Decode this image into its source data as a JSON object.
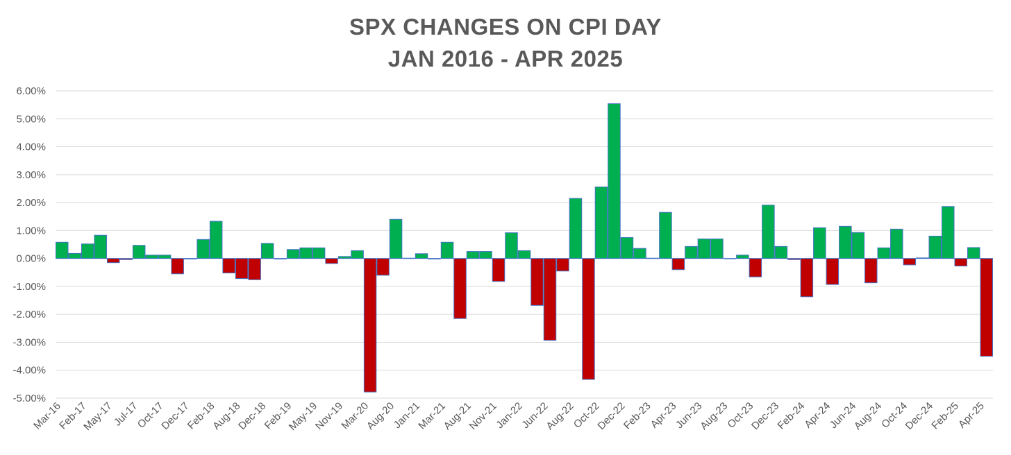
{
  "chart_data": {
    "type": "bar",
    "title_line1": "SPX CHANGES ON CPI DAY",
    "title_line2": "JAN 2016 - APR 2025",
    "ylim": [
      -5,
      6
    ],
    "yticks": [
      "6.00%",
      "5.00%",
      "4.00%",
      "3.00%",
      "2.00%",
      "1.00%",
      "0.00%",
      "-1.00%",
      "-2.00%",
      "-3.00%",
      "-4.00%",
      "-5.00%"
    ],
    "ytick_values": [
      6,
      5,
      4,
      3,
      2,
      1,
      0,
      -1,
      -2,
      -3,
      -4,
      -5
    ],
    "xtick_labels": [
      "Mar-16",
      "Feb-17",
      "May-17",
      "Jul-17",
      "Oct-17",
      "Dec-17",
      "Feb-18",
      "Aug-18",
      "Dec-18",
      "Feb-19",
      "May-19",
      "Nov-19",
      "Mar-20",
      "Aug-20",
      "Jan-21",
      "Mar-21",
      "Aug-21",
      "Nov-21",
      "Jan-22",
      "Jun-22",
      "Aug-22",
      "Oct-22",
      "Dec-22",
      "Feb-23",
      "Apr-23",
      "Jun-23",
      "Aug-23",
      "Oct-23",
      "Dec-23",
      "Feb-24",
      "Apr-24",
      "Jun-24",
      "Aug-24",
      "Oct-24",
      "Dec-24",
      "Feb-25",
      "Apr-25"
    ],
    "values": [
      0.58,
      0.18,
      0.52,
      0.83,
      -0.15,
      -0.04,
      0.47,
      0.12,
      0.12,
      -0.55,
      -0.02,
      0.68,
      1.33,
      -0.52,
      -0.72,
      -0.76,
      0.54,
      -0.02,
      0.32,
      0.38,
      0.38,
      -0.18,
      0.07,
      0.28,
      -4.78,
      -0.6,
      1.4,
      0.01,
      0.17,
      -0.02,
      0.58,
      -2.15,
      0.25,
      0.25,
      -0.82,
      0.92,
      0.28,
      -1.68,
      -2.93,
      -0.45,
      2.15,
      -4.33,
      2.56,
      5.54,
      0.75,
      0.36,
      0.01,
      1.65,
      -0.4,
      0.43,
      0.7,
      0.7,
      0.0,
      0.12,
      -0.66,
      1.91,
      0.43,
      -0.04,
      -1.37,
      1.1,
      -0.93,
      1.15,
      0.93,
      -0.87,
      0.38,
      1.05,
      -0.23,
      0.02,
      0.8,
      1.86,
      -0.27,
      0.39,
      -3.5
    ],
    "positive_color": "#00b050",
    "negative_color": "#c00000",
    "bar_edge_color": "#4472c4",
    "grid": true,
    "legend": "none"
  }
}
